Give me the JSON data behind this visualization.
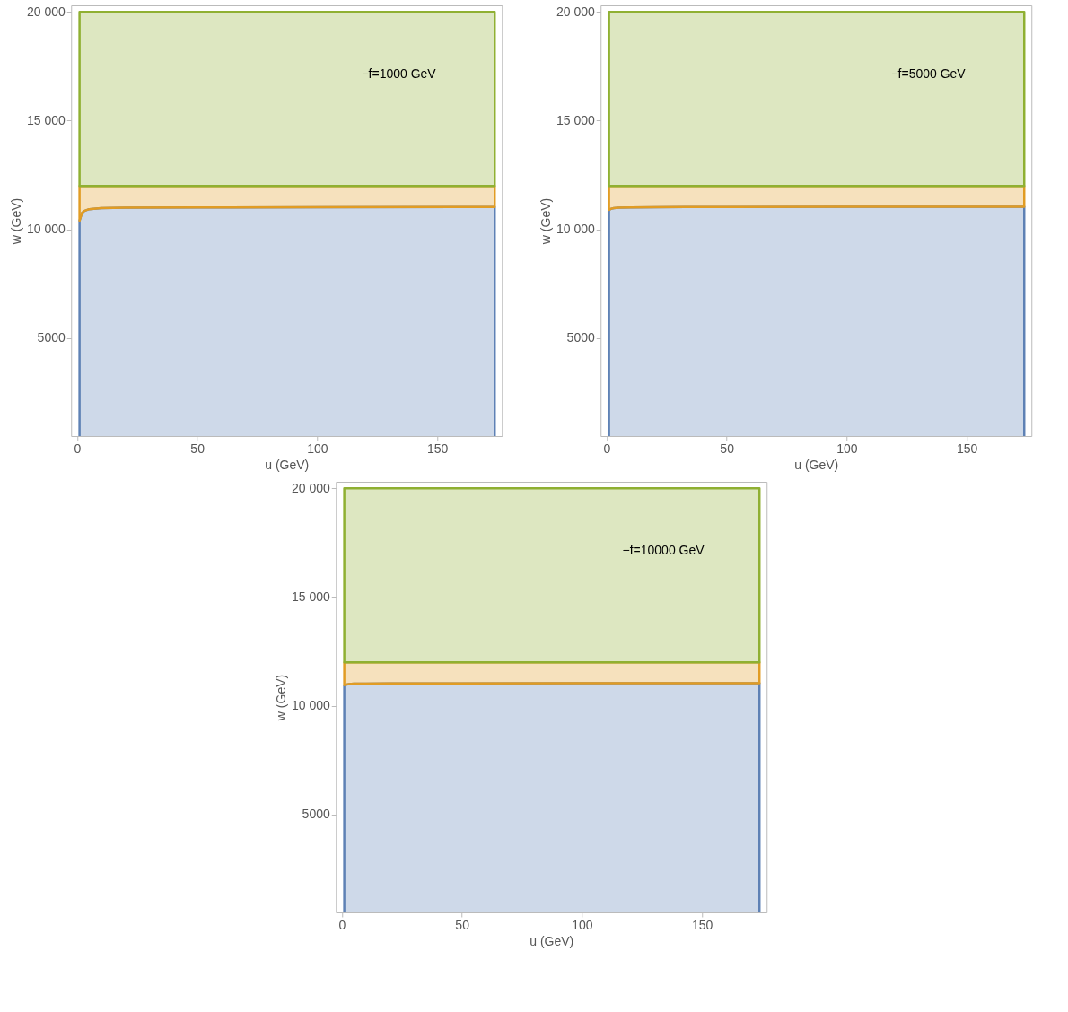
{
  "chart_data": [
    {
      "type": "area",
      "stacked": true,
      "annotations": [
        "−f=1000 GeV"
      ],
      "xlabel": "u (GeV)",
      "ylabel": "w (GeV)",
      "x": [
        1,
        2,
        3,
        5,
        10,
        20,
        50,
        100,
        174
      ],
      "xlim": [
        -2.5,
        177
      ],
      "ylim": [
        500,
        20300
      ],
      "xticks": [
        0,
        50,
        100,
        150
      ],
      "yticks": [
        {
          "value": 5000,
          "label": "5000"
        },
        {
          "value": 10000,
          "label": "10 000"
        },
        {
          "value": 15000,
          "label": "15 000"
        },
        {
          "value": 20000,
          "label": "20 000"
        }
      ],
      "grid": false,
      "series": [
        {
          "color": "#5e81b5",
          "values": [
            10400,
            10750,
            10850,
            10930,
            10980,
            11000,
            11010,
            11020,
            11030
          ]
        },
        {
          "color": "#e19c24",
          "values": [
            1600,
            1250,
            1150,
            1070,
            1020,
            1000,
            990,
            980,
            970
          ]
        },
        {
          "color": "#8fb032",
          "values": [
            8000,
            8000,
            8000,
            8000,
            8000,
            8000,
            8000,
            8000,
            8000
          ]
        }
      ]
    },
    {
      "type": "area",
      "stacked": true,
      "annotations": [
        "−f=5000 GeV"
      ],
      "xlabel": "u (GeV)",
      "ylabel": "w (GeV)",
      "x": [
        1,
        2,
        3,
        5,
        10,
        20,
        50,
        100,
        174
      ],
      "xlim": [
        -2.5,
        177
      ],
      "ylim": [
        500,
        20300
      ],
      "xticks": [
        0,
        50,
        100,
        150
      ],
      "yticks": [
        {
          "value": 5000,
          "label": "5000"
        },
        {
          "value": 10000,
          "label": "10 000"
        },
        {
          "value": 15000,
          "label": "15 000"
        },
        {
          "value": 20000,
          "label": "20 000"
        }
      ],
      "grid": false,
      "series": [
        {
          "color": "#5e81b5",
          "values": [
            10900,
            10950,
            10980,
            11000,
            11010,
            11020,
            11030,
            11040,
            11040
          ]
        },
        {
          "color": "#e19c24",
          "values": [
            1100,
            1050,
            1020,
            1000,
            990,
            980,
            970,
            960,
            960
          ]
        },
        {
          "color": "#8fb032",
          "values": [
            8000,
            8000,
            8000,
            8000,
            8000,
            8000,
            8000,
            8000,
            8000
          ]
        }
      ]
    },
    {
      "type": "area",
      "stacked": true,
      "annotations": [
        "−f=10000 GeV"
      ],
      "xlabel": "u (GeV)",
      "ylabel": "w (GeV)",
      "x": [
        1,
        2,
        3,
        5,
        10,
        20,
        50,
        100,
        174
      ],
      "xlim": [
        -2.5,
        177
      ],
      "ylim": [
        500,
        20300
      ],
      "xticks": [
        0,
        50,
        100,
        150
      ],
      "yticks": [
        {
          "value": 5000,
          "label": "5000"
        },
        {
          "value": 10000,
          "label": "10 000"
        },
        {
          "value": 15000,
          "label": "15 000"
        },
        {
          "value": 20000,
          "label": "20 000"
        }
      ],
      "grid": false,
      "series": [
        {
          "color": "#5e81b5",
          "values": [
            10950,
            10980,
            11000,
            11020,
            11020,
            11030,
            11030,
            11040,
            11040
          ]
        },
        {
          "color": "#e19c24",
          "values": [
            1050,
            1020,
            1000,
            980,
            980,
            970,
            970,
            960,
            960
          ]
        },
        {
          "color": "#8fb032",
          "values": [
            8000,
            8000,
            8000,
            8000,
            8000,
            8000,
            8000,
            8000,
            8000
          ]
        }
      ]
    }
  ]
}
